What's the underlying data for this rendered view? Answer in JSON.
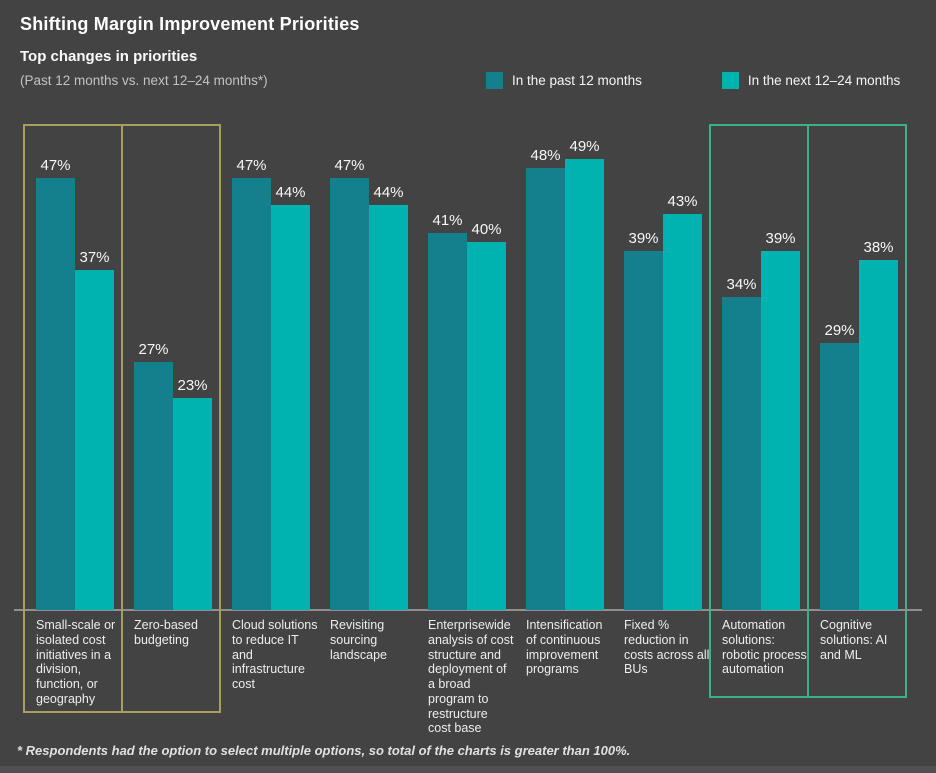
{
  "title": "Shifting Margin Improvement Priorities",
  "subtitle": "Top changes in priorities",
  "period_note": "(Past 12 months vs. next 12–24 months*)",
  "legend": {
    "items": [
      {
        "label": "In the past 12 months",
        "color": "#15808d"
      },
      {
        "label": "In the next 12–24 months",
        "color": "#00b2b0"
      }
    ]
  },
  "footnote": "* Respondents had the option to select multiple options, so total of the charts is greater than 100%.",
  "colors": {
    "background": "#434343",
    "past_bar": "#15808d",
    "next_bar": "#00b2b0",
    "highlight_olive": "#a89e5e",
    "highlight_green": "#3cb186",
    "baseline": "#909090"
  },
  "chart_data": {
    "type": "bar",
    "title": "Shifting Margin Improvement Priorities",
    "subtitle": "Top changes in priorities (Past 12 months vs. next 12–24 months*)",
    "categories": [
      "Small-scale or isolated cost initiatives in a division, function, or geography",
      "Zero-based budgeting",
      "Cloud solutions to reduce IT and infrastructure cost",
      "Revisiting sourcing landscape",
      "Enterprisewide analysis of cost structure and deployment of a broad program to restructure cost base",
      "Intensification of continuous improvement programs",
      "Fixed % reduction in costs across all BUs",
      "Automation solutions: robotic process automation",
      "Cognitive solutions: AI and ML"
    ],
    "series": [
      {
        "name": "In the past 12 months",
        "values": [
          47,
          27,
          47,
          47,
          41,
          48,
          39,
          34,
          29
        ]
      },
      {
        "name": "In the next 12–24 months",
        "values": [
          37,
          23,
          44,
          44,
          40,
          49,
          43,
          39,
          38
        ]
      }
    ],
    "value_suffix": "%",
    "ylim": [
      0,
      50
    ],
    "grid": false,
    "legend_position": "top-right",
    "highlighted_categories": [
      {
        "index": 0,
        "variant": "olive"
      },
      {
        "index": 1,
        "variant": "olive"
      },
      {
        "index": 7,
        "variant": "green"
      },
      {
        "index": 8,
        "variant": "green"
      }
    ]
  }
}
